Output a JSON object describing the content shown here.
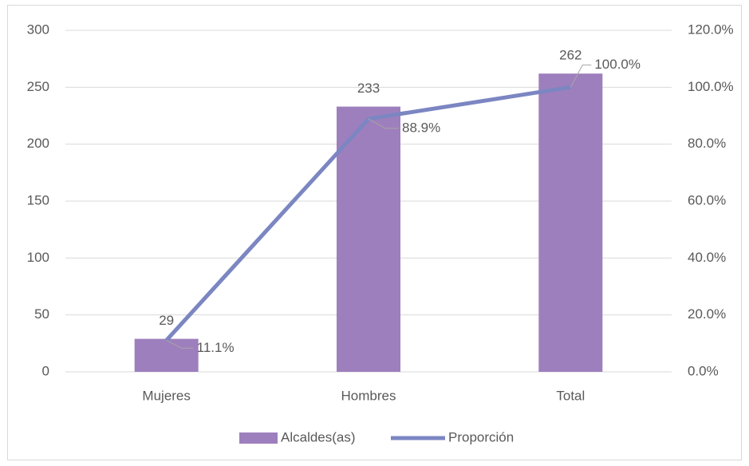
{
  "chart_data": {
    "type": "bar",
    "categories": [
      "Mujeres",
      "Hombres",
      "Total"
    ],
    "series": [
      {
        "name": "Alcaldes(as)",
        "type": "bar",
        "color": "#9e7fbd",
        "values": [
          29,
          233,
          262
        ],
        "axis": "y"
      },
      {
        "name": "Proporción",
        "type": "line",
        "color": "#7b86c2",
        "values": [
          11.1,
          88.9,
          100.0
        ],
        "value_labels": [
          "11.1%",
          "88.9%",
          "100.0%"
        ],
        "axis": "y2"
      }
    ],
    "ylim": [
      0,
      300
    ],
    "yticks": [
      0,
      50,
      100,
      150,
      200,
      250,
      300
    ],
    "y2lim": [
      0,
      120
    ],
    "y2ticks": [
      {
        "value": 0,
        "label": "0.0%"
      },
      {
        "value": 20,
        "label": "20.0%"
      },
      {
        "value": 40,
        "label": "40.0%"
      },
      {
        "value": 60,
        "label": "60.0%"
      },
      {
        "value": 80,
        "label": "80.0%"
      },
      {
        "value": 100,
        "label": "100.0%"
      },
      {
        "value": 120,
        "label": "120.0%"
      }
    ],
    "grid": true,
    "legend": "bottom"
  }
}
